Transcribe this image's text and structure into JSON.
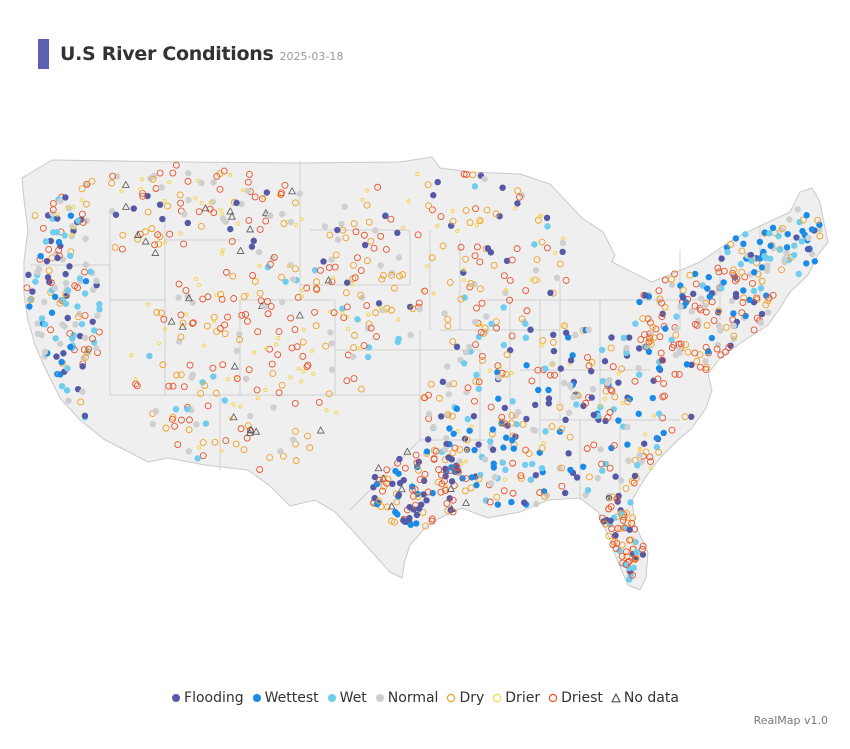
{
  "header": {
    "title": "U.S River Conditions",
    "date": "2025-03-18"
  },
  "colors": {
    "accent": "#5b60b3",
    "land": "#efefef",
    "border": "#c9c9c9",
    "flooding": "#5559a6",
    "wettest": "#1a8ce8",
    "wet": "#70cdee",
    "normal": "#cfcfcf",
    "dry": "#f0a126",
    "drier": "#f6d54a",
    "driest": "#e8532d",
    "nodata": "#555555"
  },
  "legend": [
    {
      "key": "flooding",
      "label": "Flooding",
      "icon": "filled-circle"
    },
    {
      "key": "wettest",
      "label": "Wettest",
      "icon": "filled-circle"
    },
    {
      "key": "wet",
      "label": "Wet",
      "icon": "filled-circle"
    },
    {
      "key": "normal",
      "label": "Normal",
      "icon": "filled-circle"
    },
    {
      "key": "dry",
      "label": "Dry",
      "icon": "open-circle"
    },
    {
      "key": "drier",
      "label": "Drier",
      "icon": "open-circle"
    },
    {
      "key": "driest",
      "label": "Driest",
      "icon": "open-circle"
    },
    {
      "key": "nodata",
      "label": "No data",
      "icon": "open-triangle"
    }
  ],
  "footer": {
    "credit": "RealMap v1.0"
  }
}
